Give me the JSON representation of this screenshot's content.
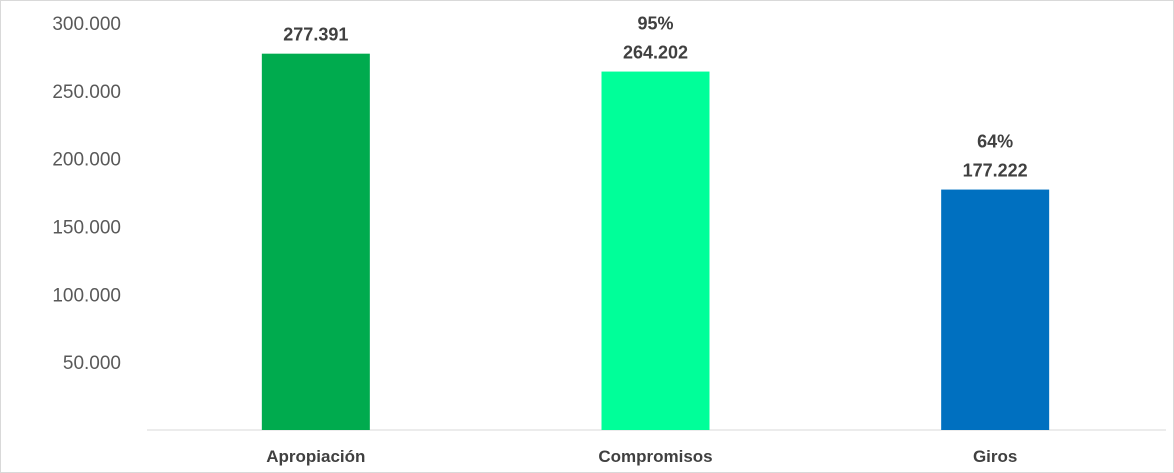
{
  "chart_data": {
    "type": "bar",
    "categories": [
      "Apropiación",
      "Compromisos",
      "Giros"
    ],
    "values": [
      277391,
      264202,
      177222
    ],
    "value_labels": [
      "277.391",
      "264.202",
      "177.222"
    ],
    "percent_labels": [
      "",
      "95%",
      "64%"
    ],
    "colors": [
      "#00ab4e",
      "#00ff99",
      "#0070c0"
    ],
    "y_ticks": [
      50000,
      100000,
      150000,
      200000,
      250000,
      300000
    ],
    "y_tick_labels": [
      "50.000",
      "100.000",
      "150.000",
      "200.000",
      "250.000",
      "300.000"
    ],
    "ylim": [
      0,
      300000
    ],
    "grid": false,
    "legend": "none"
  }
}
